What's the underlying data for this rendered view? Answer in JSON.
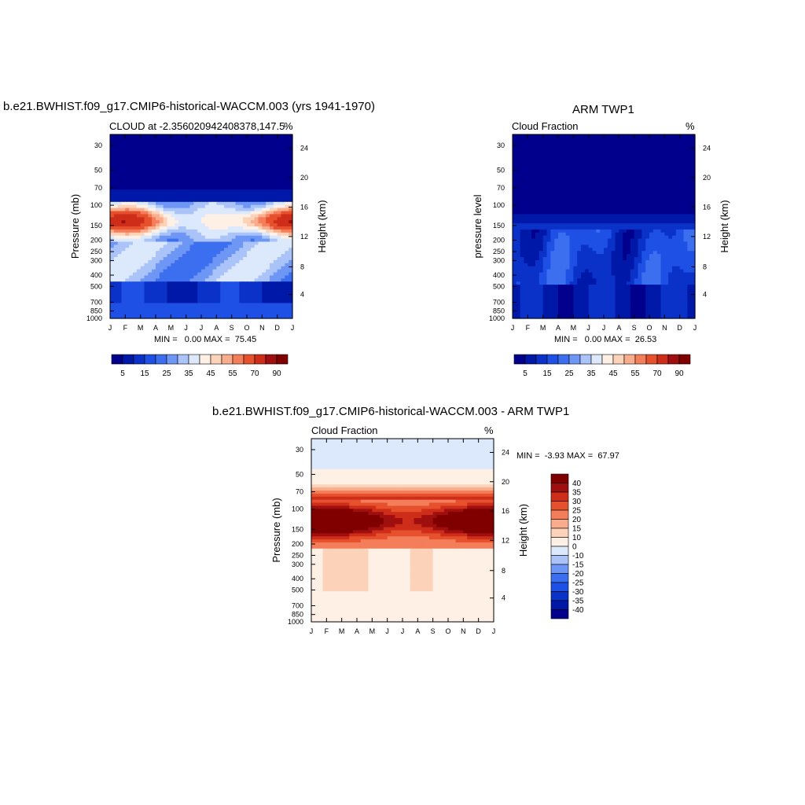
{
  "chart_data": [
    {
      "type": "heatmap",
      "title": "b.e21.BWHIST.f09_g17.CMIP6-historical-WACCM.003 (yrs 1941-1970)",
      "subtitle_left": "CLOUD at -2.3560209424083 78,147.5",
      "subtitle_left_exact": "CLOUD at -2.356020942408378,147.5",
      "units": "%",
      "ylabel": "Pressure (mb)",
      "ylabel_right": "Height (km)",
      "stats": "MIN =   0.00 MAX =  75.45",
      "months": [
        "J",
        "F",
        "M",
        "A",
        "M",
        "J",
        "J",
        "A",
        "S",
        "O",
        "N",
        "D",
        "J"
      ],
      "pressure_ticks": [
        "30",
        "50",
        "70",
        "100",
        "150",
        "200",
        "250",
        "300",
        "400",
        "500",
        "700",
        "850",
        "1000"
      ],
      "height_ticks": [
        "24",
        "20",
        "16",
        "12",
        "8",
        "4"
      ],
      "colorbar_labels": [
        "5",
        "15",
        "25",
        "35",
        "45",
        "55",
        "70",
        "90"
      ]
    },
    {
      "type": "heatmap",
      "title": "ARM TWP1",
      "subtitle_left": "Cloud Fraction",
      "units": "%",
      "ylabel": "pressure level",
      "ylabel_right": "Height (km)",
      "stats": "MIN =   0.00 MAX =  26.53",
      "months": [
        "J",
        "F",
        "M",
        "A",
        "M",
        "J",
        "J",
        "A",
        "S",
        "O",
        "N",
        "D",
        "J"
      ],
      "pressure_ticks": [
        "30",
        "50",
        "70",
        "100",
        "150",
        "200",
        "250",
        "300",
        "400",
        "500",
        "700",
        "850",
        "1000"
      ],
      "height_ticks": [
        "24",
        "20",
        "16",
        "12",
        "8",
        "4"
      ],
      "colorbar_labels": [
        "5",
        "15",
        "25",
        "35",
        "45",
        "55",
        "70",
        "90"
      ]
    },
    {
      "type": "heatmap",
      "title": "b.e21.BWHIST.f09_g17.CMIP6-historical-WACCM.003 - ARM TWP1",
      "subtitle_left": "Cloud Fraction",
      "units": "%",
      "ylabel": "Pressure (mb)",
      "ylabel_right": "Height (km)",
      "stats": "MIN =  -3.93 MAX =  67.97",
      "months": [
        "J",
        "F",
        "M",
        "A",
        "M",
        "J",
        "J",
        "A",
        "S",
        "O",
        "N",
        "D",
        "J"
      ],
      "pressure_ticks": [
        "30",
        "50",
        "70",
        "100",
        "150",
        "200",
        "250",
        "300",
        "400",
        "500",
        "700",
        "850",
        "1000"
      ],
      "height_ticks": [
        "24",
        "20",
        "16",
        "12",
        "8",
        "4"
      ],
      "colorbar_labels": [
        "40",
        "35",
        "30",
        "25",
        "20",
        "15",
        "10",
        "0",
        "-10",
        "-15",
        "-20",
        "-25",
        "-30",
        "-35",
        "-40"
      ]
    }
  ],
  "palette": {
    "blue_red": [
      "#00008c",
      "#0018a8",
      "#0a32c8",
      "#1e50e6",
      "#3c6ef0",
      "#6e96f5",
      "#aac4fa",
      "#dce8fc",
      "#fff0e6",
      "#fcd2b9",
      "#f9ad8c",
      "#f47d5a",
      "#e6502d",
      "#cd2d19",
      "#a00f0f",
      "#800000"
    ],
    "diff": [
      "#00008c",
      "#0018a8",
      "#0a32c8",
      "#1e50e6",
      "#3c6ef0",
      "#6e96f5",
      "#aac4fa",
      "#dce8fc",
      "#fff0e6",
      "#fcd2b9",
      "#f9ad8c",
      "#f47d5a",
      "#e6502d",
      "#cd2d19",
      "#a00f0f",
      "#800000"
    ]
  }
}
